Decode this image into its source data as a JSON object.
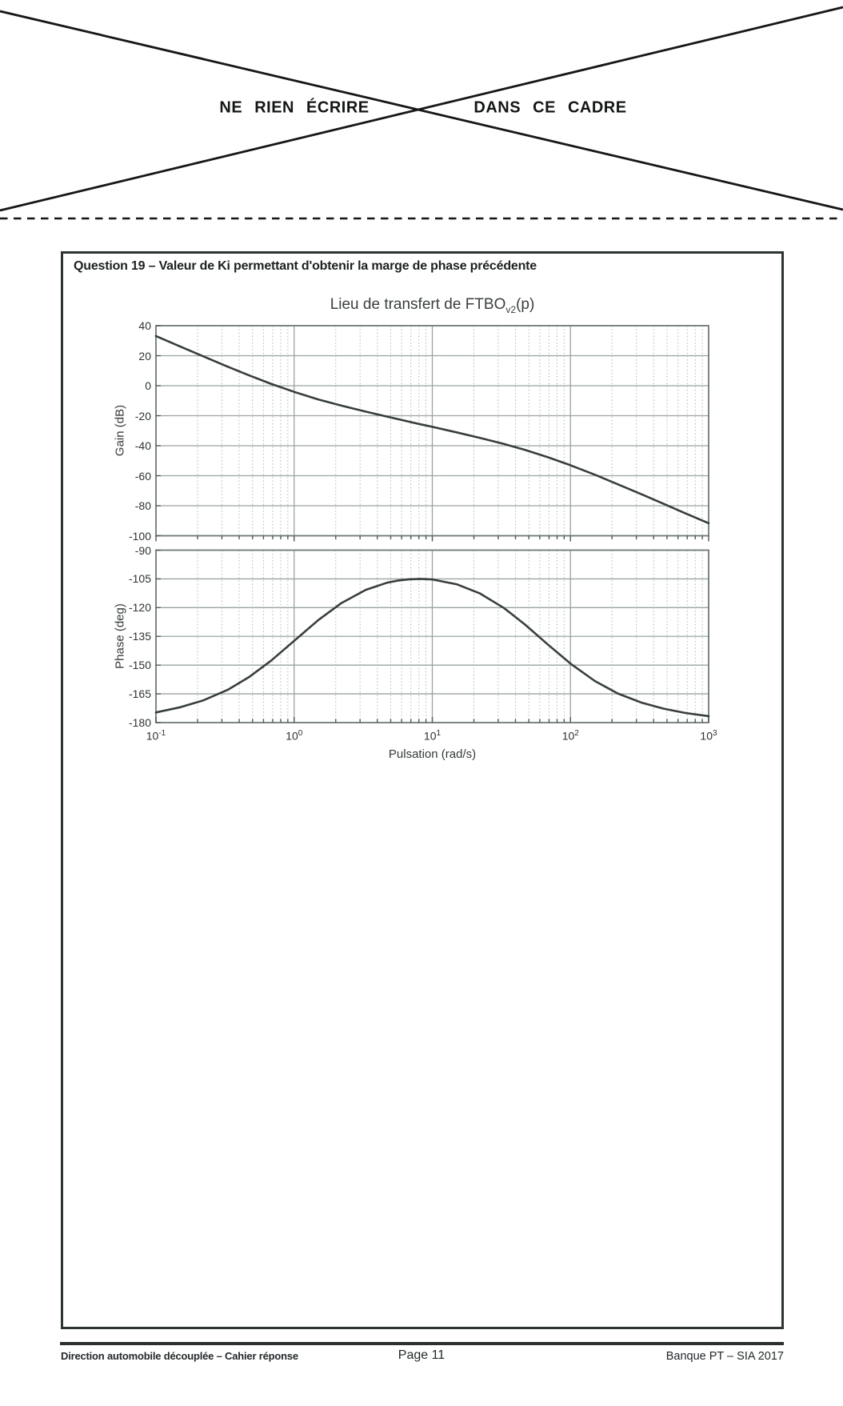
{
  "header": {
    "left_text": "NE RIEN ÉCRIRE",
    "right_text": "DANS CE CADRE"
  },
  "question": {
    "title": "Question 19 –  Valeur de Ki permettant d'obtenir la marge de phase précédente"
  },
  "chart": {
    "title_prefix": "Lieu de transfert de FTBO",
    "title_sub": "v2",
    "title_suffix": "(p)",
    "gain_ylabel": "Gain (dB)",
    "phase_ylabel": "Phase (deg)",
    "xlabel": "Pulsation (rad/s)",
    "x_tick_base": "10",
    "x_tick_exponents": [
      -1,
      0,
      1,
      2,
      3
    ],
    "gain_yticks": [
      40,
      20,
      0,
      -20,
      -40,
      -60,
      -80,
      -100
    ],
    "phase_yticks": [
      -90,
      -105,
      -120,
      -135,
      -150,
      -165,
      -180
    ]
  },
  "chart_data": {
    "type": "line",
    "title": "Lieu de transfert de FTBOv2(p)",
    "xlabel": "Pulsation (rad/s)",
    "x_scale": "log",
    "x_range": [
      0.1,
      1000
    ],
    "grid": true,
    "omega": [
      0.1,
      0.15,
      0.22,
      0.33,
      0.47,
      0.68,
      1,
      1.5,
      2.2,
      3.3,
      4.7,
      5.6,
      6.8,
      8.2,
      10,
      15,
      22,
      33,
      47,
      68,
      100,
      150,
      220,
      330,
      470,
      680,
      1000
    ],
    "subplots": [
      {
        "name": "gain",
        "ylabel": "Gain (dB)",
        "ylim": [
          -100,
          40
        ],
        "yticks": [
          40,
          20,
          0,
          -20,
          -40,
          -60,
          -80,
          -100
        ],
        "values": [
          33.1,
          26.1,
          19.6,
          12.7,
          7.0,
          1.3,
          -4.1,
          -9.2,
          -13.3,
          -17.3,
          -20.6,
          -22.2,
          -24.0,
          -25.7,
          -27.4,
          -31.1,
          -34.7,
          -38.8,
          -42.8,
          -47.5,
          -53.0,
          -59.3,
          -65.7,
          -72.5,
          -78.6,
          -85.1,
          -91.6
        ]
      },
      {
        "name": "phase",
        "ylabel": "Phase (deg)",
        "ylim": [
          -180,
          -90
        ],
        "yticks": [
          -90,
          -105,
          -120,
          -135,
          -150,
          -165,
          -180
        ],
        "values": [
          -174.7,
          -172.0,
          -168.4,
          -162.9,
          -156.3,
          -147.7,
          -137.3,
          -126.4,
          -117.6,
          -110.7,
          -107.0,
          -105.9,
          -105.2,
          -105.0,
          -105.3,
          -107.8,
          -112.5,
          -120.2,
          -128.9,
          -139.0,
          -149.2,
          -158.3,
          -164.8,
          -169.7,
          -172.7,
          -175.0,
          -176.6
        ]
      }
    ],
    "annotations": {
      "gain_crossover_rad_s": 0.8,
      "phase_peak_deg": -105,
      "phase_peak_rad_s": 8
    }
  },
  "footer": {
    "left": "Direction automobile découplée – Cahier réponse",
    "center": "Page 11",
    "right": "Banque PT – SIA 2017"
  },
  "colors": {
    "ink": "#161616",
    "box_border": "#2e3434",
    "plot_border": "#6e7975",
    "grid_major": "#9aa49e",
    "grid_minor": "#b2bcb4",
    "curve": "#373e3c",
    "tick": "#4d5a55"
  }
}
